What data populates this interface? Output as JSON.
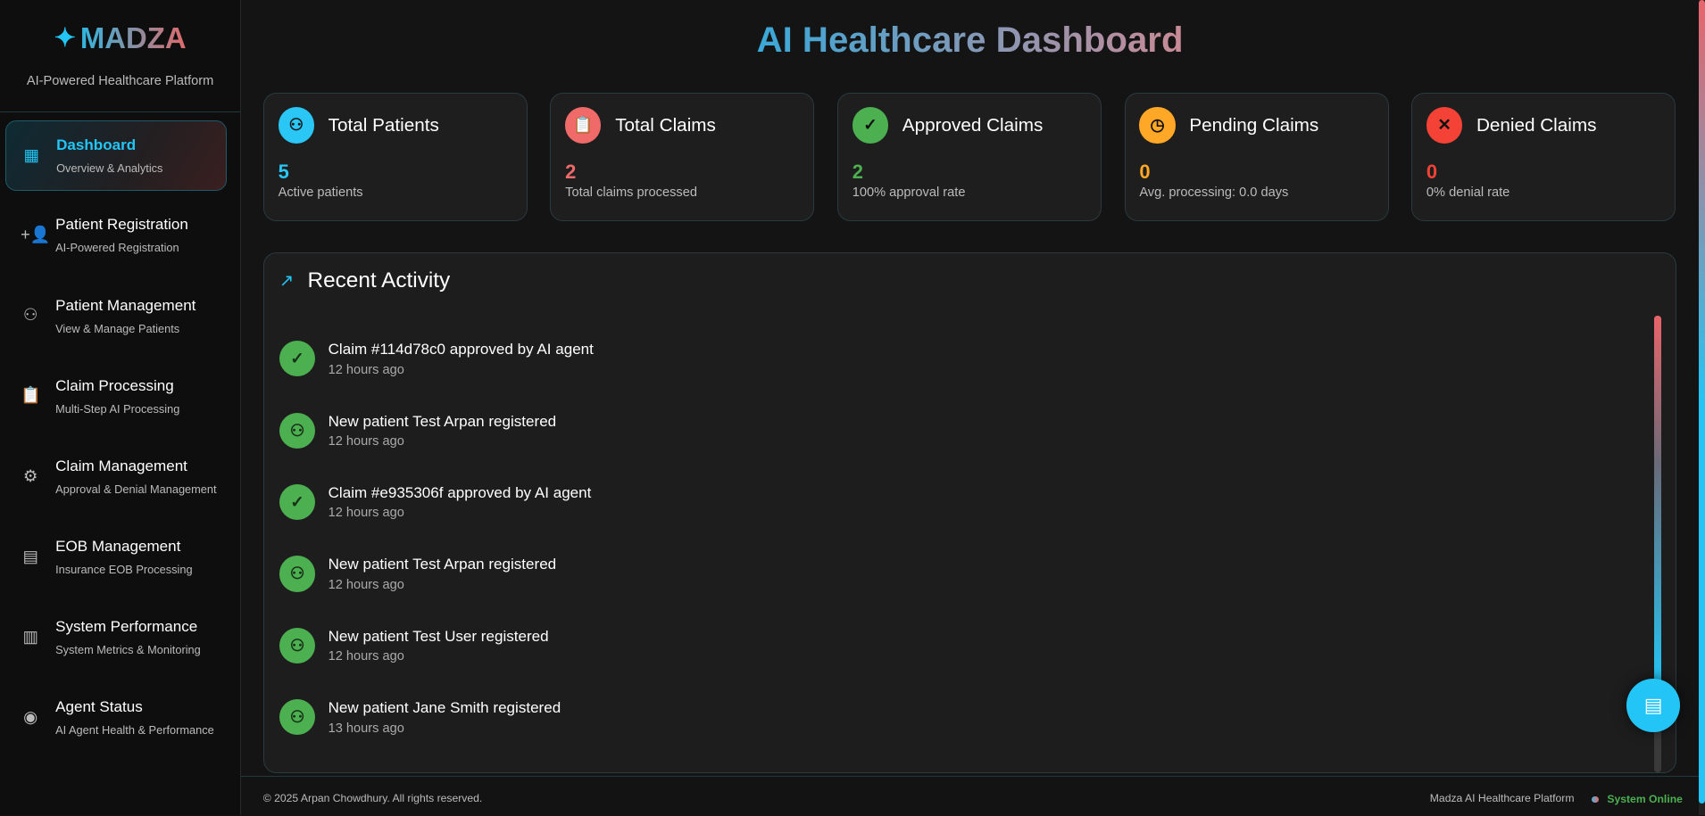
{
  "brand": {
    "name": "MADZA",
    "tagline": "AI-Powered Healthcare Platform"
  },
  "nav": [
    {
      "label": "Dashboard",
      "sub": "Overview & Analytics",
      "icon": "dashboard-icon",
      "active": true
    },
    {
      "label": "Patient Registration",
      "sub": "AI-Powered Registration",
      "icon": "person-add-icon"
    },
    {
      "label": "Patient Management",
      "sub": "View & Manage Patients",
      "icon": "people-icon"
    },
    {
      "label": "Claim Processing",
      "sub": "Multi-Step AI Processing",
      "icon": "clipboard-icon"
    },
    {
      "label": "Claim Management",
      "sub": "Approval & Denial Management",
      "icon": "user-gear-icon"
    },
    {
      "label": "EOB Management",
      "sub": "Insurance EOB Processing",
      "icon": "document-icon"
    },
    {
      "label": "System Performance",
      "sub": "System Metrics & Monitoring",
      "icon": "chart-icon"
    },
    {
      "label": "Agent Status",
      "sub": "AI Agent Health & Performance",
      "icon": "brain-icon"
    }
  ],
  "title": "AI Healthcare Dashboard",
  "cards": [
    {
      "label": "Total Patients",
      "value": "5",
      "sub": "Active patients",
      "color": "#29c6f6",
      "icon": "people-icon"
    },
    {
      "label": "Total Claims",
      "value": "2",
      "sub": "Total claims processed",
      "color": "#f06a6a",
      "icon": "clipboard-icon"
    },
    {
      "label": "Approved Claims",
      "value": "2",
      "sub": "100% approval rate",
      "color": "#4caf50",
      "icon": "check-circle-icon"
    },
    {
      "label": "Pending Claims",
      "value": "0",
      "sub": "Avg. processing: 0.0 days",
      "color": "#ffa726",
      "icon": "clock-icon"
    },
    {
      "label": "Denied Claims",
      "value": "0",
      "sub": "0% denial rate",
      "color": "#f44336",
      "icon": "cancel-icon"
    }
  ],
  "activity": {
    "title": "Recent Activity",
    "items": [
      {
        "text": "Claim #114d78c0 approved by AI agent",
        "time": "12 hours ago",
        "icon": "check-circle-icon"
      },
      {
        "text": "New patient Test Arpan registered",
        "time": "12 hours ago",
        "icon": "people-icon"
      },
      {
        "text": "Claim #e935306f approved by AI agent",
        "time": "12 hours ago",
        "icon": "check-circle-icon"
      },
      {
        "text": "New patient Test Arpan registered",
        "time": "12 hours ago",
        "icon": "people-icon"
      },
      {
        "text": "New patient Test User registered",
        "time": "12 hours ago",
        "icon": "people-icon"
      },
      {
        "text": "New patient Jane Smith registered",
        "time": "13 hours ago",
        "icon": "people-icon"
      }
    ]
  },
  "footer": {
    "copyright": "© 2025 Arpan Chowdhury. All rights reserved.",
    "platform": "Madza AI Healthcare Platform",
    "status": "System Online"
  }
}
